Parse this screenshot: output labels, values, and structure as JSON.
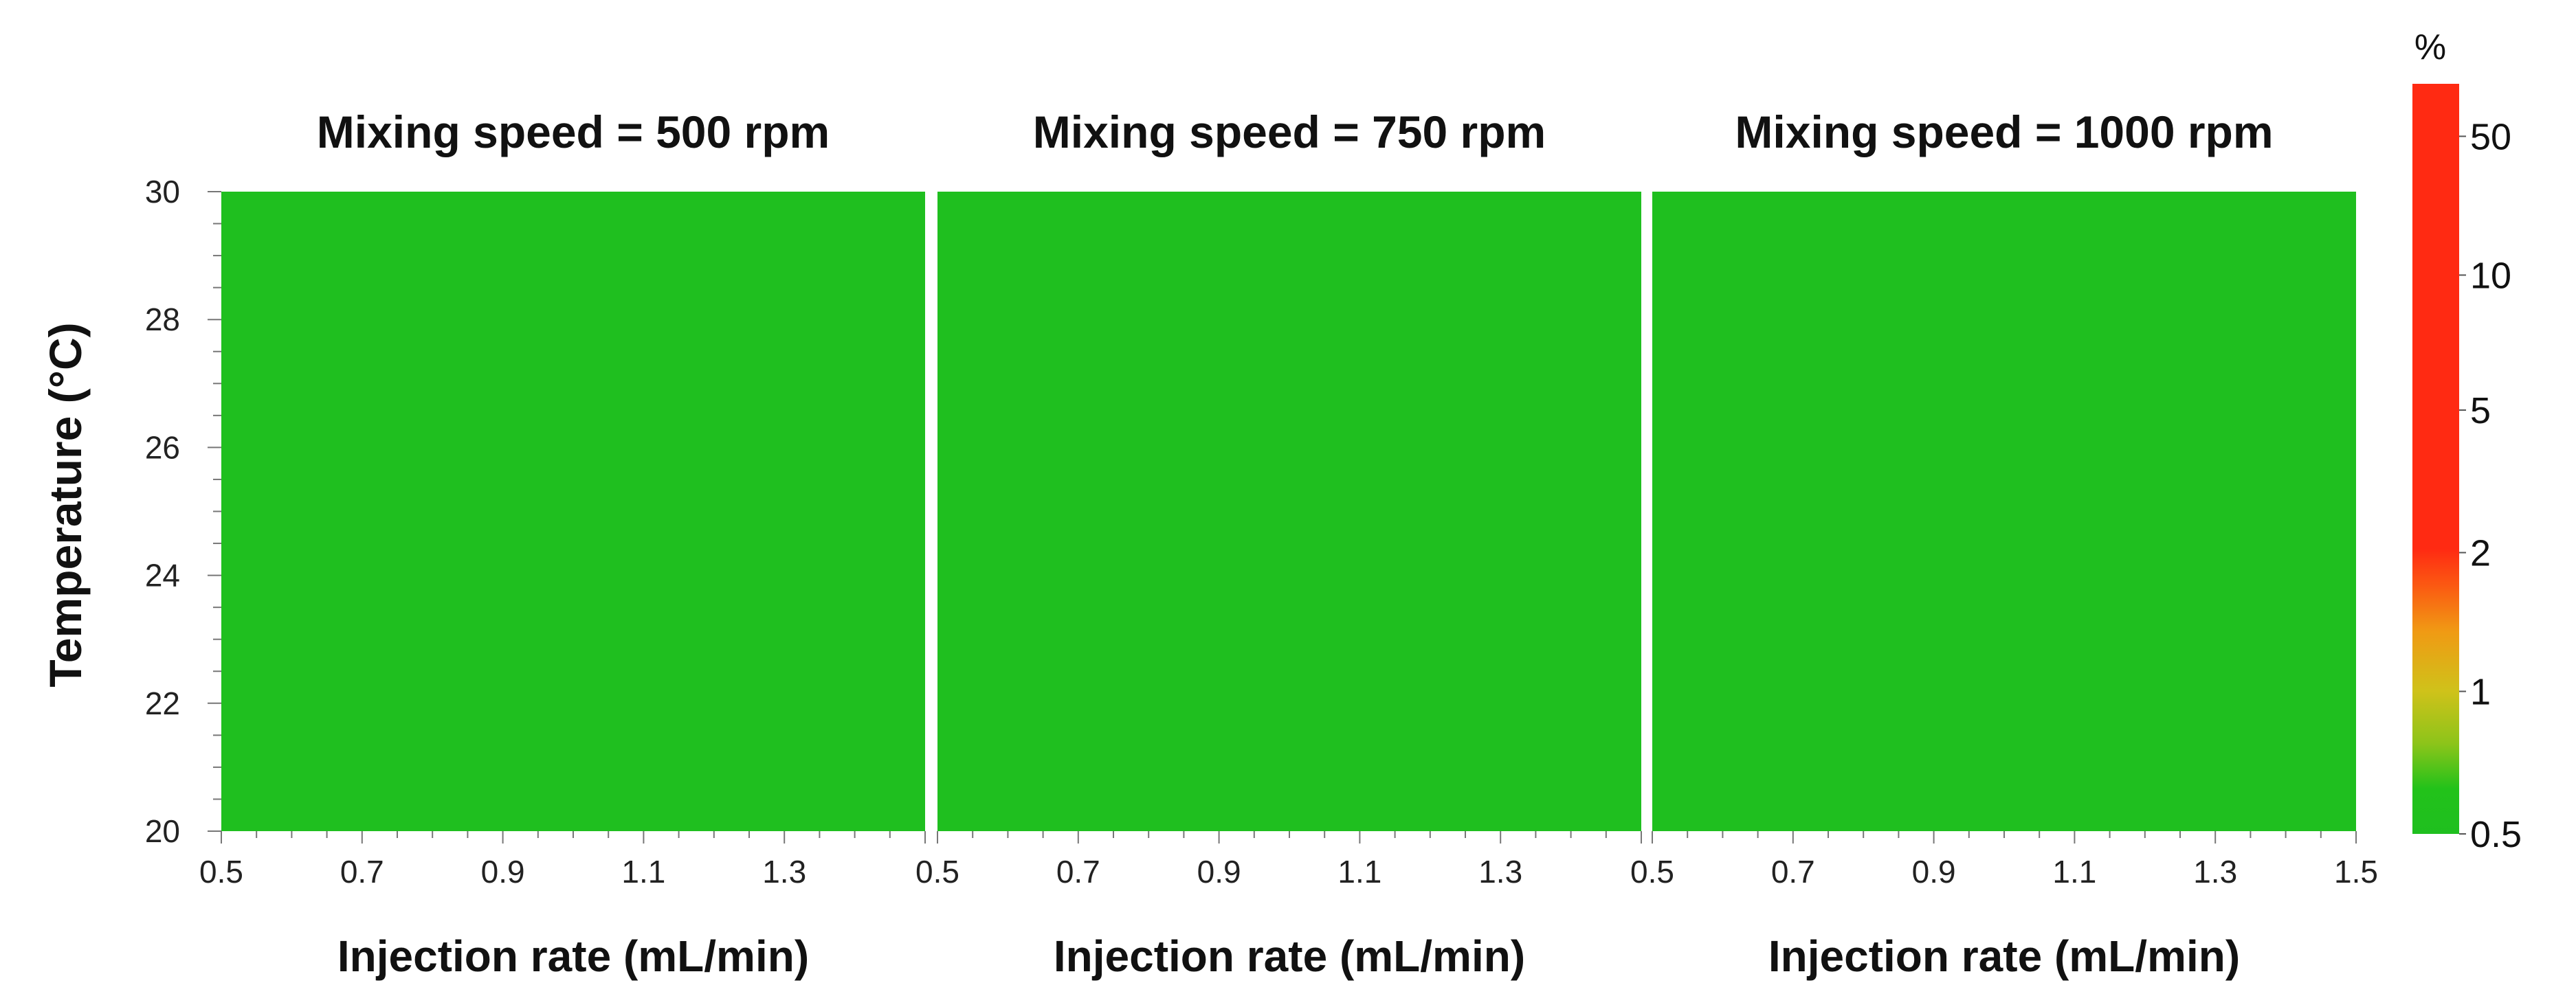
{
  "chart_data": {
    "type": "heatmap",
    "ylabel": "Temperature (°C)",
    "ylim": [
      20,
      30
    ],
    "yticks": [
      "20",
      "22",
      "24",
      "26",
      "28",
      "30"
    ],
    "xlim": [
      0.5,
      1.5
    ],
    "xticks": [
      "0.5",
      "0.7",
      "0.9",
      "1.1",
      "1.3",
      "1.5"
    ],
    "colorbar": {
      "unit": "%",
      "ticks": [
        "0.5",
        "1",
        "2",
        "5",
        "10",
        "50"
      ],
      "low_color": "#1fbf1f",
      "mid_color": "#cfc21a",
      "high_color": "#ff2a12"
    },
    "panels": [
      {
        "title": "Mixing speed = 500 rpm",
        "xlabel": "Injection rate (mL/min)",
        "value_range_percent": [
          0,
          0.5
        ],
        "fill": "#1fbf1f"
      },
      {
        "title": "Mixing speed = 750 rpm",
        "xlabel": "Injection rate (mL/min)",
        "value_range_percent": [
          0,
          0.5
        ],
        "fill": "#1fbf1f"
      },
      {
        "title": "Mixing speed = 1000 rpm",
        "xlabel": "Injection rate (mL/min)",
        "value_range_percent": [
          0,
          0.5
        ],
        "fill": "#1fbf1f"
      }
    ]
  }
}
